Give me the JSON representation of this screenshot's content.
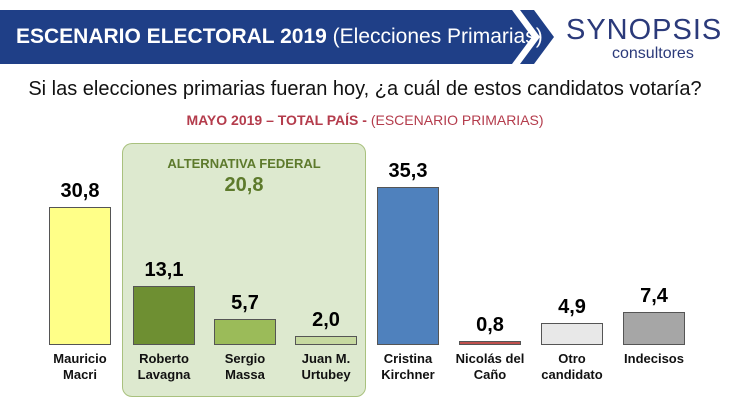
{
  "header": {
    "title_bold": "ESCENARIO ELECTORAL 2019",
    "title_rest": "(Elecciones Primarias)",
    "banner_color": "#1f3f87",
    "logo": {
      "main": "SYNOPSIS",
      "sub": "consultores"
    }
  },
  "question": "Si las elecciones primarias fueran hoy, ¿a cuál de estos candidatos votaría?",
  "subtitle": {
    "bold": "MAYO 2019 – TOTAL PAÍS -",
    "rest": "(ESCENARIO PRIMARIAS)"
  },
  "group": {
    "label": "ALTERNATIVA FEDERAL",
    "total": "20,8"
  },
  "chart_data": {
    "type": "bar",
    "categories": [
      [
        "Mauricio",
        "Macri"
      ],
      [
        "Roberto",
        "Lavagna"
      ],
      [
        "Sergio",
        "Massa"
      ],
      [
        "Juan M.",
        "Urtubey"
      ],
      [
        "Cristina",
        "Kirchner"
      ],
      [
        "Nicolás del",
        "Caño"
      ],
      [
        "Otro",
        "candidato"
      ],
      [
        "Indecisos"
      ]
    ],
    "values": [
      30.8,
      13.1,
      5.7,
      2.0,
      35.3,
      0.8,
      4.9,
      7.4
    ],
    "labels": [
      "30,8",
      "13,1",
      "5,7",
      "2,0",
      "35,3",
      "0,8",
      "4,9",
      "7,4"
    ],
    "colors": [
      "#ffff88",
      "#6e8f32",
      "#9bbb59",
      "#c6d9a0",
      "#4f81bd",
      "#c0504d",
      "#e8e8e8",
      "#a6a6a6"
    ],
    "ylim": [
      0,
      35.3
    ]
  }
}
